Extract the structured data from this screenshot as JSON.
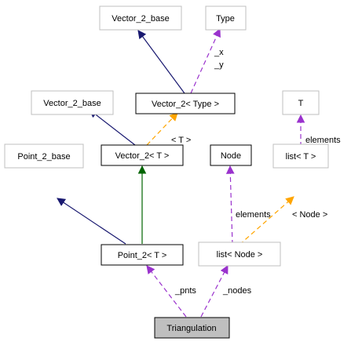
{
  "nodes": {
    "vector_2_base_top": {
      "label": "Vector_2_base",
      "border": "#bfbfbf",
      "fill": "#ffffff"
    },
    "type": {
      "label": "Type",
      "border": "#bfbfbf",
      "fill": "#ffffff"
    },
    "vector_2_base_mid": {
      "label": "Vector_2_base",
      "border": "#bfbfbf",
      "fill": "#ffffff"
    },
    "vector_2_type": {
      "label": "Vector_2< Type >",
      "border": "#000000",
      "fill": "#ffffff"
    },
    "t": {
      "label": "T",
      "border": "#bfbfbf",
      "fill": "#ffffff"
    },
    "point_2_base": {
      "label": "Point_2_base",
      "border": "#bfbfbf",
      "fill": "#ffffff"
    },
    "vector_2_t": {
      "label": "Vector_2< T >",
      "border": "#000000",
      "fill": "#ffffff"
    },
    "node": {
      "label": "Node",
      "border": "#000000",
      "fill": "#ffffff"
    },
    "list_t": {
      "label": "list< T >",
      "border": "#bfbfbf",
      "fill": "#ffffff"
    },
    "point_2_t": {
      "label": "Point_2< T >",
      "border": "#000000",
      "fill": "#ffffff"
    },
    "list_node": {
      "label": "list< Node >",
      "border": "#bfbfbf",
      "fill": "#ffffff"
    },
    "triangulation": {
      "label": "Triangulation",
      "border": "#000000",
      "fill": "#bfbfbf"
    }
  },
  "edge_labels": {
    "type_to_vector_2_type": [
      "_x",
      "_y"
    ],
    "vector_2_type_to_vector_2_t": "< T >",
    "t_to_list_t": "elements",
    "node_to_list_node": "elements",
    "list_t_to_list_node": "< Node >",
    "point_2_t_to_triangulation": "_pnts",
    "list_node_to_triangulation": "_nodes"
  },
  "colors": {
    "inheritance": "#191970",
    "public_inheritance_green": "#006400",
    "usage": "#9a32cd",
    "template": "#ffa500"
  }
}
